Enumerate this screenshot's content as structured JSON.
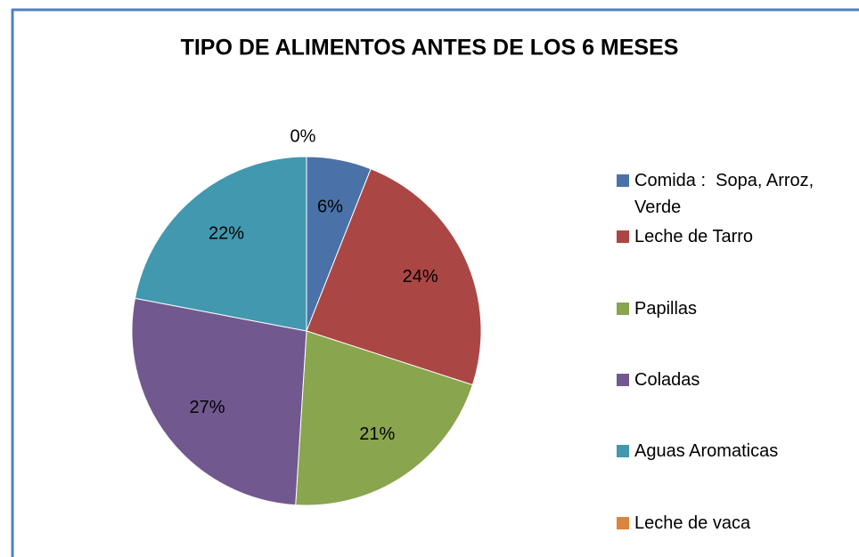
{
  "chart_data": {
    "type": "pie",
    "title": "TIPO DE ALIMENTOS ANTES DE LOS 6 MESES",
    "categories": [
      "Comida :  Sopa, Arroz, Verde",
      "Leche de Tarro",
      "Papillas",
      "Coladas",
      "Aguas Aromaticas",
      "Leche de vaca"
    ],
    "values": [
      6,
      24,
      21,
      27,
      22,
      0
    ],
    "value_labels": [
      "6%",
      "24%",
      "21%",
      "27%",
      "22%",
      "0%"
    ],
    "colors": [
      "#4a72a8",
      "#aa4744",
      "#89a54e",
      "#71598f",
      "#4198af",
      "#db843d"
    ],
    "legend": "right"
  }
}
